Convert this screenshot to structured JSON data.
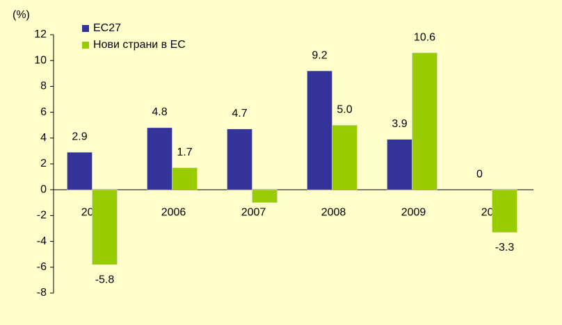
{
  "chart_data": {
    "type": "bar",
    "y_unit_label": "(%)",
    "categories": [
      "2005",
      "2006",
      "2007",
      "2008",
      "2009",
      "2010"
    ],
    "series": [
      {
        "name": "ЕС27",
        "color": "#333399",
        "values": [
          2.9,
          4.8,
          4.7,
          9.2,
          3.9,
          0
        ],
        "value_labels": [
          "2.9",
          "4.8",
          "4.7",
          "9.2",
          "3.9",
          "0"
        ]
      },
      {
        "name": "Нови страни в ЕС",
        "color": "#99cc00",
        "values": [
          -5.8,
          1.7,
          -1.0,
          5.0,
          10.6,
          -3.3
        ],
        "value_labels": [
          "-5.8",
          "1.7",
          null,
          "5.0",
          "10.6",
          "-3.3"
        ]
      }
    ],
    "ylim": [
      -8,
      12
    ],
    "yticks": [
      -8,
      -6,
      -4,
      -2,
      0,
      2,
      4,
      6,
      8,
      10,
      12
    ],
    "legend": "upper left"
  }
}
